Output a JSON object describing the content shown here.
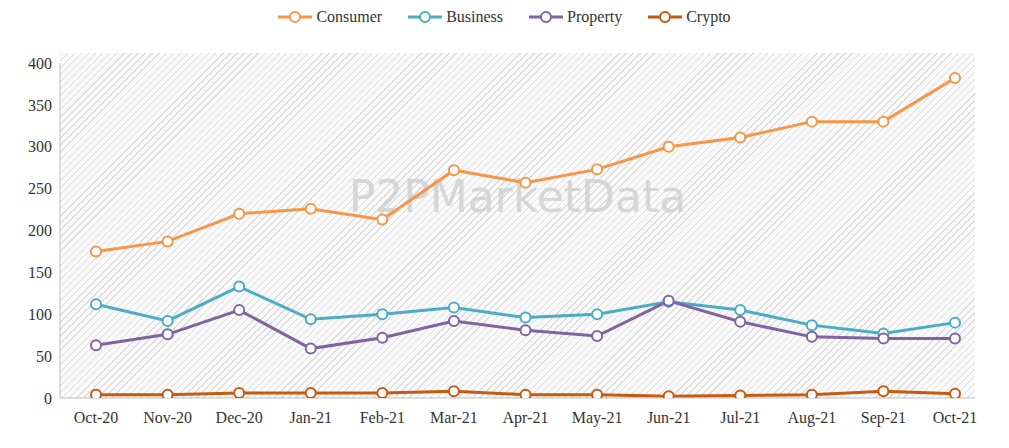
{
  "chart_data": {
    "type": "line",
    "categories": [
      "Oct-20",
      "Nov-20",
      "Dec-20",
      "Jan-21",
      "Feb-21",
      "Mar-21",
      "Apr-21",
      "May-21",
      "Jun-21",
      "Jul-21",
      "Aug-21",
      "Sep-21",
      "Oct-21"
    ],
    "series": [
      {
        "name": "Consumer",
        "color": "#F79646",
        "values": [
          175,
          187,
          220,
          226,
          213,
          272,
          257,
          273,
          300,
          311,
          330,
          330,
          382
        ]
      },
      {
        "name": "Business",
        "color": "#4BACC6",
        "values": [
          112,
          92,
          133,
          94,
          100,
          108,
          96,
          100,
          115,
          105,
          87,
          77,
          90
        ]
      },
      {
        "name": "Property",
        "color": "#8064A2",
        "values": [
          63,
          76,
          105,
          59,
          72,
          92,
          81,
          74,
          116,
          91,
          73,
          71,
          71
        ]
      },
      {
        "name": "Crypto",
        "color": "#C55A11",
        "values": [
          4,
          4,
          6,
          6,
          6,
          8,
          4,
          4,
          2,
          3,
          4,
          8,
          5
        ]
      }
    ],
    "ylim": [
      0,
      400
    ],
    "yticks": [
      0,
      50,
      100,
      150,
      200,
      250,
      300,
      350,
      400
    ],
    "grid": false,
    "legend": "top",
    "marker": "circle",
    "annotations": [
      "P2PMarketData"
    ]
  }
}
